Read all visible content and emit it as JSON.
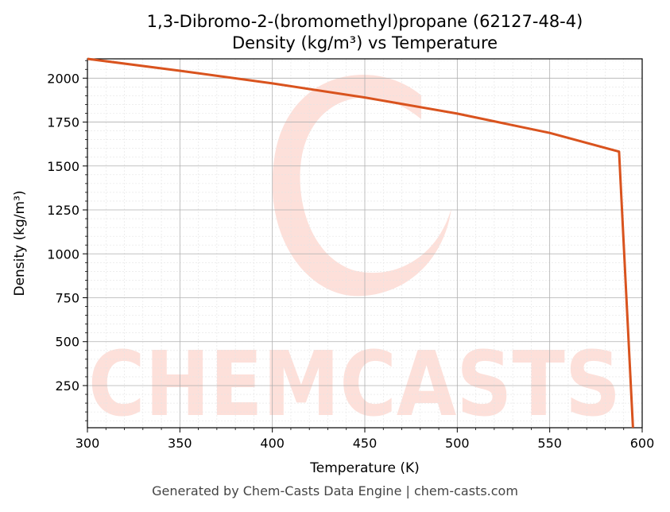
{
  "chart_data": {
    "type": "line",
    "title_line1": "1,3-Dibromo-2-(bromomethyl)propane (62127-48-4)",
    "title_line2": "Density (kg/m³) vs Temperature",
    "xlabel": "Temperature (K)",
    "ylabel": "Density (kg/m³)",
    "xlim": [
      300,
      600
    ],
    "ylim": [
      10,
      2110
    ],
    "x_ticks": [
      300,
      350,
      400,
      450,
      500,
      550,
      600
    ],
    "y_ticks": [
      250,
      500,
      750,
      1000,
      1250,
      1500,
      1750,
      2000
    ],
    "grid": true,
    "series": [
      {
        "color": "#d9531e",
        "points": [
          [
            300,
            2110
          ],
          [
            350,
            2042
          ],
          [
            400,
            1970
          ],
          [
            450,
            1890
          ],
          [
            500,
            1798
          ],
          [
            550,
            1688
          ],
          [
            587.5,
            1582
          ],
          [
            595,
            10
          ]
        ]
      }
    ]
  },
  "watermark": {
    "text": "CHEMCASTS",
    "color": "#fde0da"
  },
  "footer": "Generated by Chem-Casts Data Engine | chem-casts.com"
}
